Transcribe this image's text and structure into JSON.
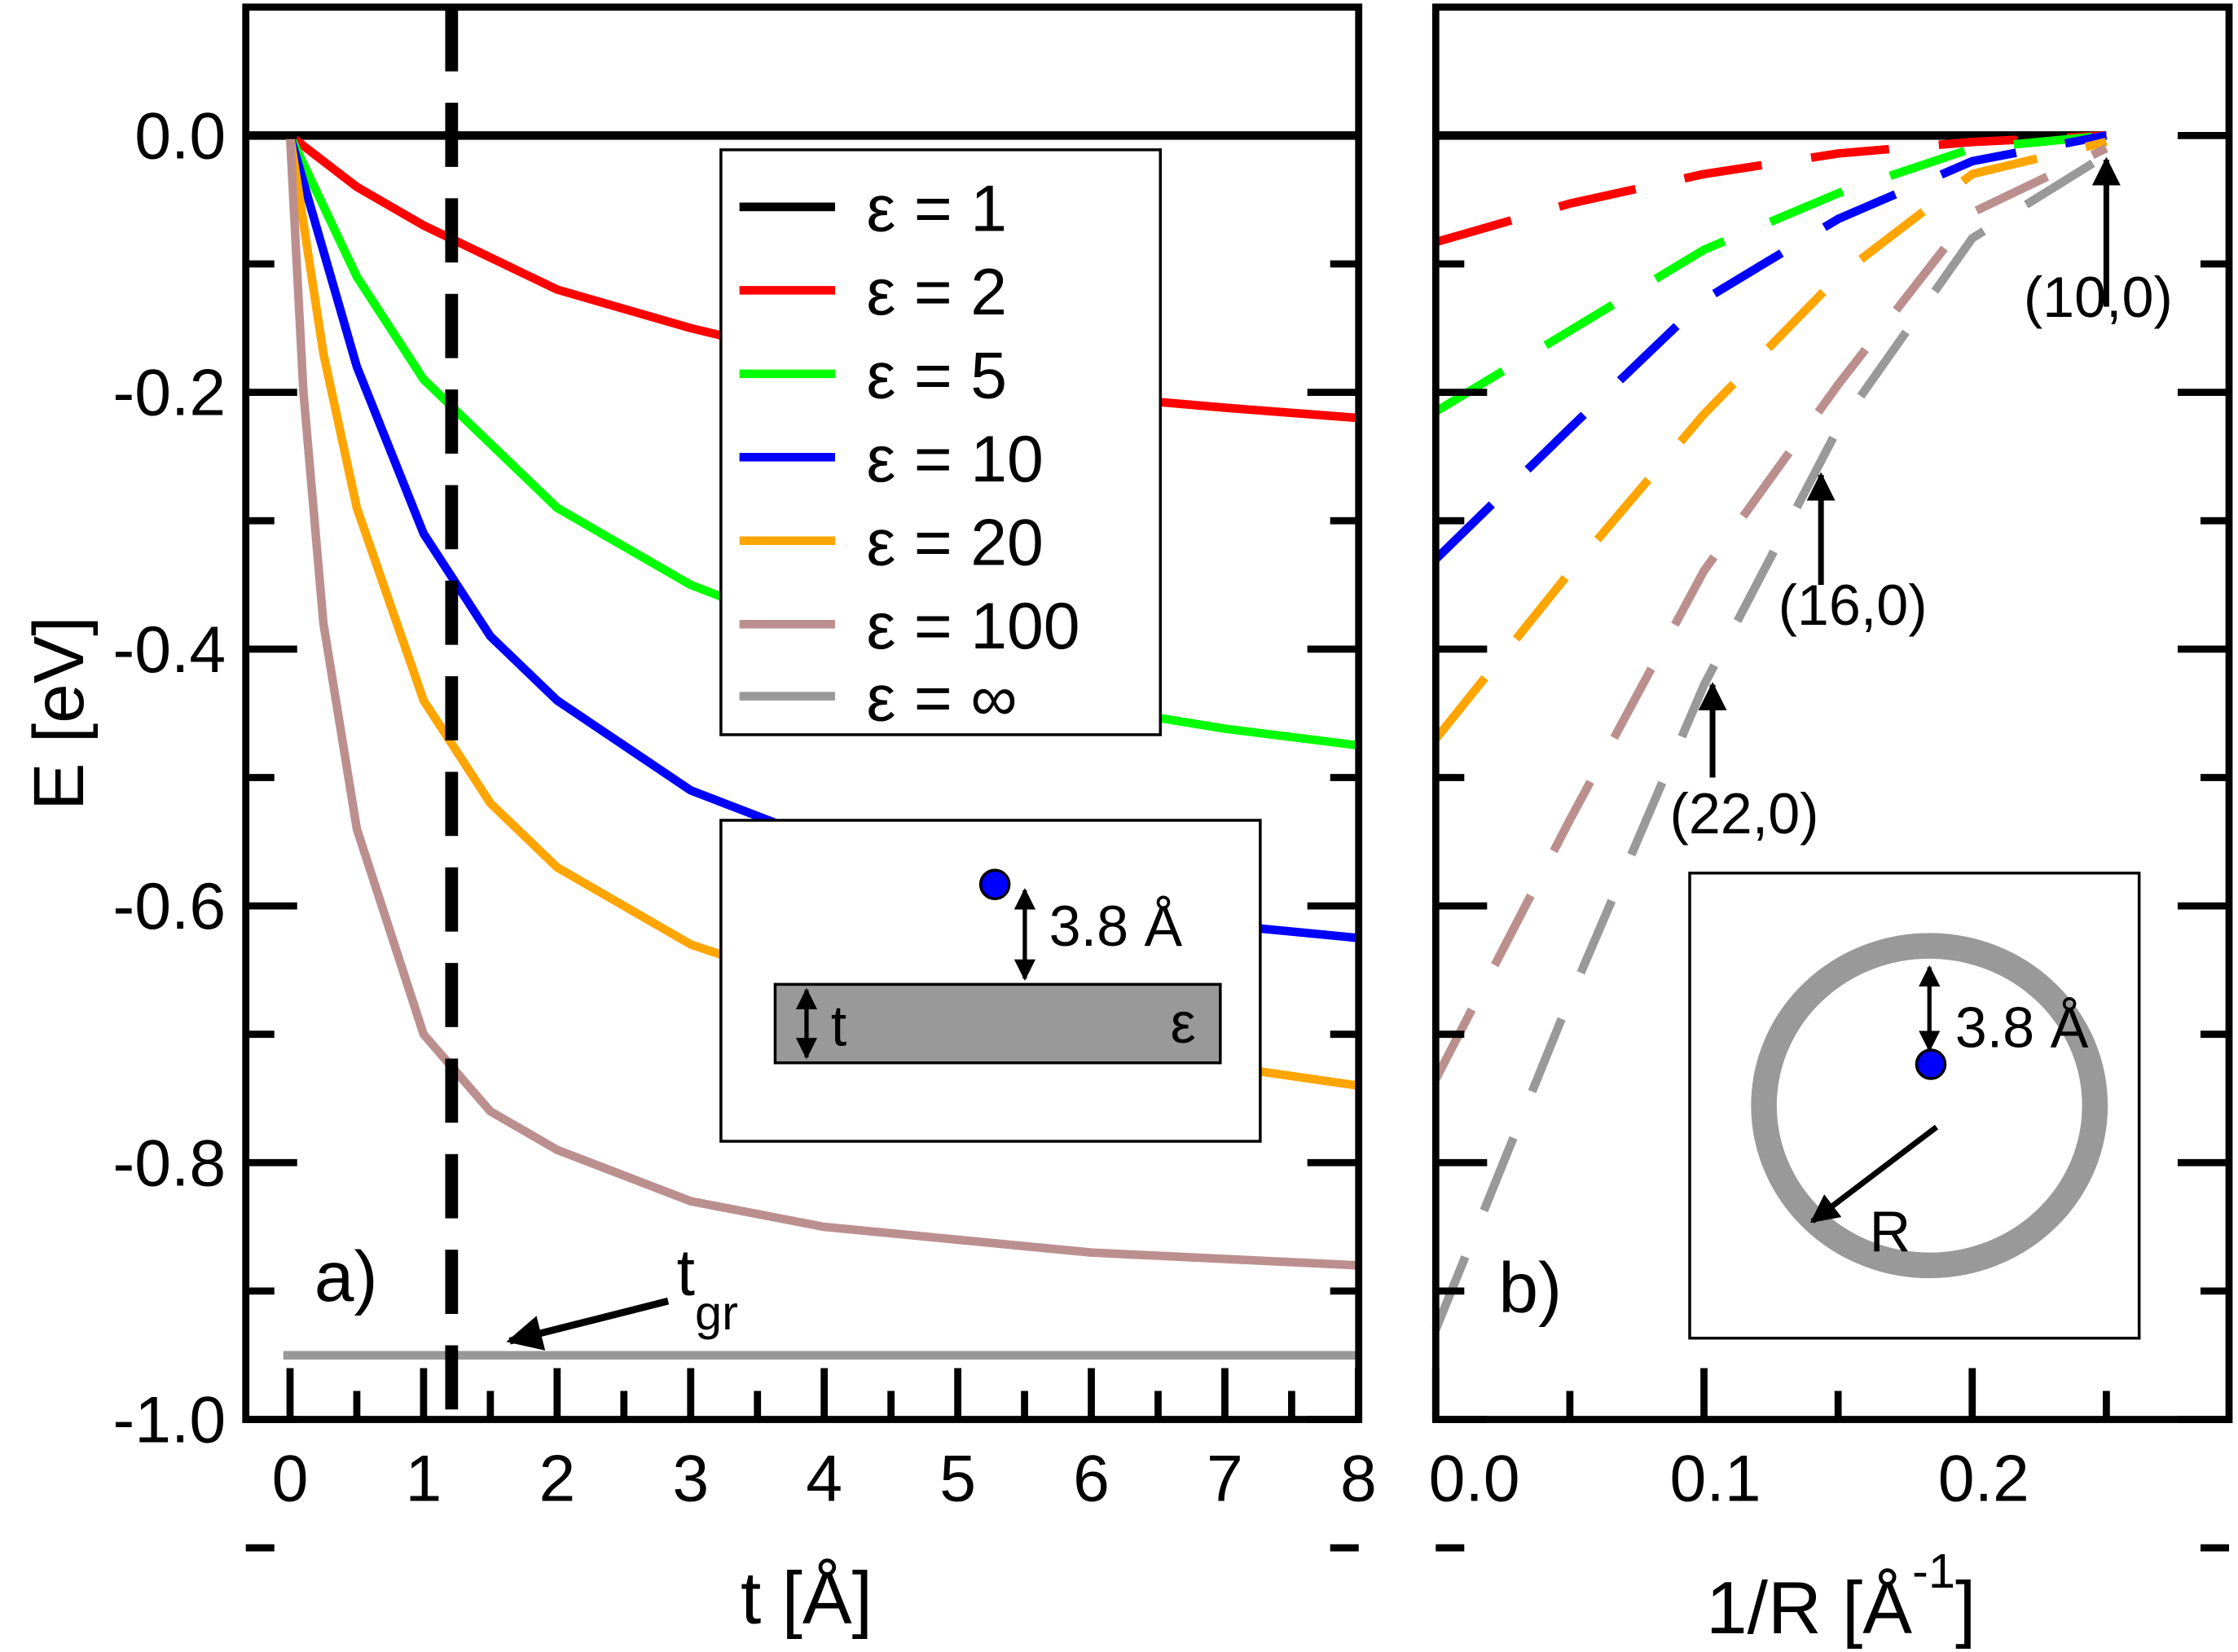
{
  "chart_data": [
    {
      "type": "line",
      "panel_label": "a)",
      "xlabel": "t [Å]",
      "ylabel": "E [eV]",
      "xlim": [
        -0.33,
        8
      ],
      "ylim": [
        -1.0,
        0.1
      ],
      "xticks": [
        "0",
        "1",
        "2",
        "3",
        "4",
        "5",
        "6",
        "7",
        "8"
      ],
      "yticks": [
        "0.0",
        "-0.2",
        "-0.4",
        "-0.6",
        "-0.8",
        "-1.0"
      ],
      "grid": false,
      "legend_position": "top-right",
      "vertical_dashed_line_t": 1.21,
      "annotation": {
        "text": "t",
        "subscript": "gr"
      },
      "series": [
        {
          "name": "ε = 1",
          "color": "#000000",
          "x": [
            -0.33,
            8
          ],
          "y": [
            0,
            0
          ]
        },
        {
          "name": "ε = 2",
          "color": "#ff0000",
          "x": [
            0,
            0.5,
            1,
            2,
            3,
            4,
            5,
            6,
            7,
            8
          ],
          "y": [
            0,
            -0.04,
            -0.07,
            -0.12,
            -0.15,
            -0.175,
            -0.19,
            -0.203,
            -0.212,
            -0.22
          ]
        },
        {
          "name": "ε = 5",
          "color": "#00ff00",
          "x": [
            0,
            0.5,
            1,
            2,
            3,
            4,
            5,
            6,
            7,
            8
          ],
          "y": [
            0,
            -0.11,
            -0.19,
            -0.29,
            -0.35,
            -0.39,
            -0.42,
            -0.445,
            -0.462,
            -0.475
          ]
        },
        {
          "name": "ε = 10",
          "color": "#0000ff",
          "x": [
            0,
            0.5,
            1,
            1.5,
            2,
            3,
            4,
            5,
            6,
            7,
            8
          ],
          "y": [
            0,
            -0.18,
            -0.31,
            -0.39,
            -0.44,
            -0.51,
            -0.55,
            -0.58,
            -0.6,
            -0.615,
            -0.625
          ]
        },
        {
          "name": "ε = 20",
          "color": "#ffa500",
          "x": [
            0,
            0.25,
            0.5,
            1,
            1.5,
            2,
            3,
            4,
            5,
            6,
            7,
            8
          ],
          "y": [
            0,
            -0.17,
            -0.29,
            -0.44,
            -0.52,
            -0.57,
            -0.63,
            -0.665,
            -0.69,
            -0.71,
            -0.725,
            -0.74
          ]
        },
        {
          "name": "ε = 100",
          "color": "#bc8f8f",
          "x": [
            0,
            0.1,
            0.25,
            0.5,
            1,
            1.5,
            2,
            3,
            4,
            5,
            6,
            7,
            8
          ],
          "y": [
            0,
            -0.2,
            -0.38,
            -0.54,
            -0.7,
            -0.76,
            -0.79,
            -0.83,
            -0.85,
            -0.86,
            -0.87,
            -0.875,
            -0.88
          ]
        },
        {
          "name": "ε = ∞",
          "color": "#999999",
          "x": [
            -0.05,
            8
          ],
          "y": [
            -0.95,
            -0.95
          ]
        }
      ],
      "inset": {
        "distance_label": "3.8 Å",
        "thickness_label": "t",
        "epsilon_label": "ε"
      }
    },
    {
      "type": "line",
      "panel_label": "b)",
      "xlabel": "1/R [Å",
      "xlabel_superscript": "-1",
      "xlabel_close": "]",
      "xlim": [
        0,
        0.295
      ],
      "ylim": [
        -1.0,
        0.1
      ],
      "xticks": [
        "0.0",
        "0.1",
        "0.2"
      ],
      "grid": false,
      "line_style": "dashed",
      "annotations": [
        "(10,0)",
        "(16,0)",
        "(22,0)"
      ],
      "series": [
        {
          "name": "ε = 1",
          "color": "#000000",
          "x": [
            0,
            0.25
          ],
          "y": [
            0,
            0
          ]
        },
        {
          "name": "ε = 2",
          "color": "#ff0000",
          "x": [
            0,
            0.05,
            0.1,
            0.15,
            0.2,
            0.25
          ],
          "y": [
            -0.083,
            -0.053,
            -0.03,
            -0.014,
            -0.005,
            0
          ]
        },
        {
          "name": "ε = 5",
          "color": "#00ff00",
          "x": [
            0,
            0.05,
            0.1,
            0.15,
            0.2,
            0.25
          ],
          "y": [
            -0.215,
            -0.152,
            -0.089,
            -0.045,
            -0.01,
            0
          ]
        },
        {
          "name": "ε = 10",
          "color": "#0000ff",
          "x": [
            0,
            0.05,
            0.1,
            0.15,
            0.2,
            0.25
          ],
          "y": [
            -0.33,
            -0.228,
            -0.128,
            -0.065,
            -0.02,
            0
          ]
        },
        {
          "name": "ε = 20",
          "color": "#ffa500",
          "x": [
            0,
            0.05,
            0.1,
            0.15,
            0.2,
            0.25
          ],
          "y": [
            -0.47,
            -0.34,
            -0.217,
            -0.11,
            -0.03,
            -0.005
          ]
        },
        {
          "name": "ε = 100",
          "color": "#bc8f8f",
          "x": [
            0,
            0.05,
            0.1,
            0.15,
            0.2,
            0.25
          ],
          "y": [
            -0.735,
            -0.533,
            -0.339,
            -0.194,
            -0.06,
            -0.01
          ]
        },
        {
          "name": "ε = ∞",
          "color": "#999999",
          "x": [
            0,
            0.05,
            0.1,
            0.15,
            0.2,
            0.25
          ],
          "y": [
            -0.93,
            -0.672,
            -0.428,
            -0.228,
            -0.08,
            -0.015
          ]
        }
      ],
      "inset": {
        "distance_label": "3.8 Å",
        "radius_label": "R"
      }
    }
  ]
}
